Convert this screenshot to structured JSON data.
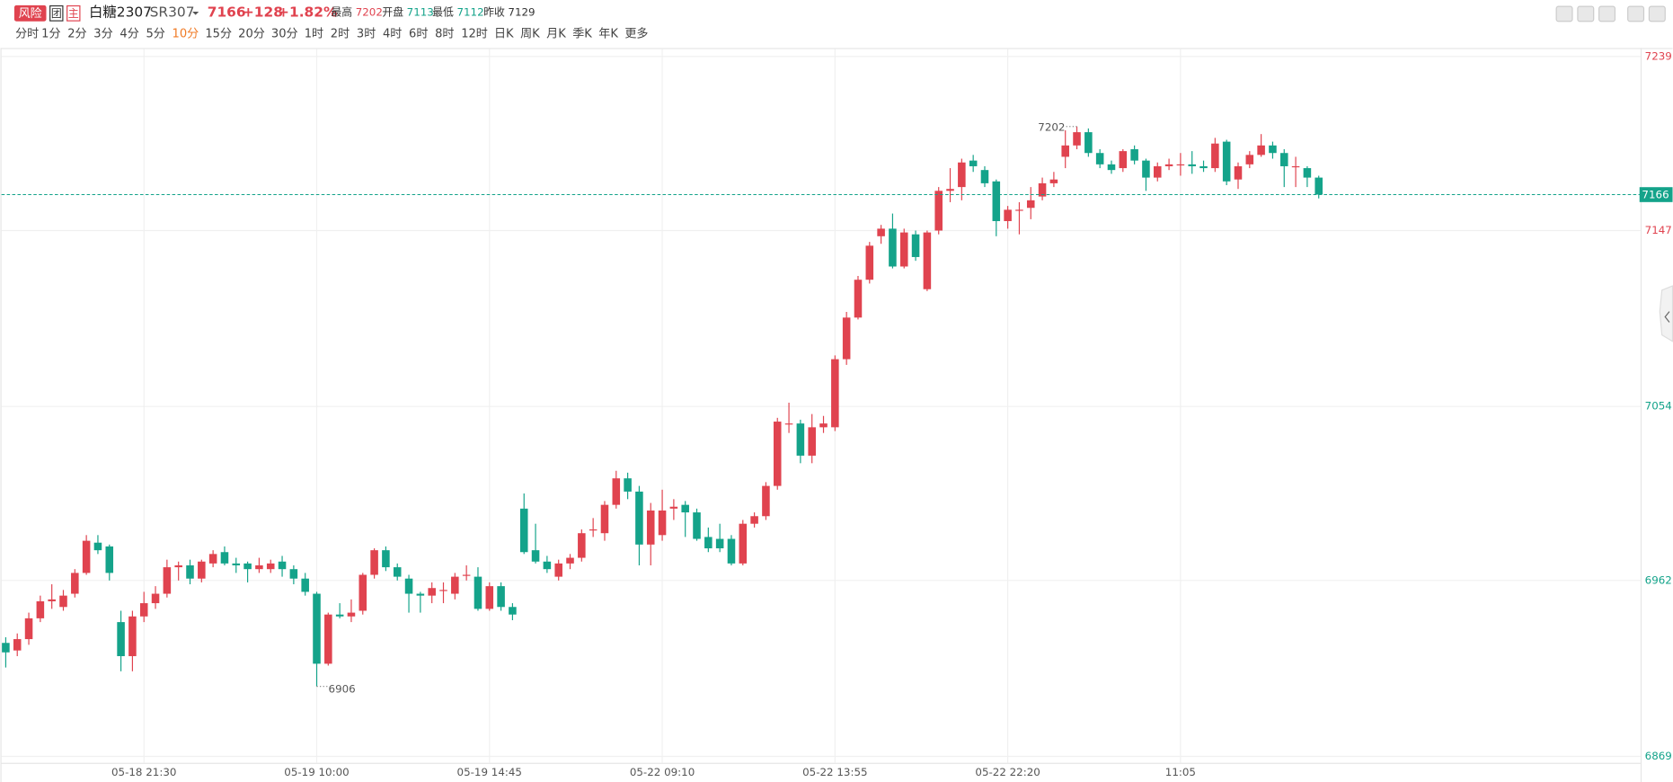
{
  "header": {
    "badges": [
      "风险",
      "团",
      "主"
    ],
    "name": "白糖2307",
    "code": "SR307",
    "change": "+128",
    "change_pct": "+1.82%",
    "stats": [
      {
        "label": "最高",
        "value": "7202"
      },
      {
        "label": "开盘",
        "value": "7113"
      },
      {
        "label": "最低",
        "value": "7112"
      },
      {
        "label": "昨收"
      }
    ]
  },
  "toolbar": {
    "periods": [
      "分时",
      "1分",
      "2分",
      "3分",
      "4分",
      "5分",
      "10分",
      "15分",
      "20分",
      "30分",
      "1时",
      "2时",
      "3时",
      "4时",
      "6时",
      "8时",
      "12时",
      "日K",
      "周K",
      "月K",
      "季K",
      "年K",
      "更多"
    ],
    "active_index": 6,
    "active_color": "#f07b26"
  },
  "chart_data": {
    "type": "candlestick",
    "up_color": "#e0434f",
    "down_color": "#14a38a",
    "grid": true,
    "last_price": 7166,
    "prev_close": 7129,
    "ylim": [
      6869,
      7239
    ],
    "yticks": [
      7239,
      7147,
      7054,
      6962,
      6869
    ],
    "categories": [
      null,
      null,
      null,
      null,
      null,
      null,
      null,
      null,
      null,
      null,
      null,
      null,
      "05-18 21:30",
      null,
      null,
      null,
      null,
      null,
      null,
      null,
      null,
      null,
      null,
      null,
      null,
      null,
      null,
      "05-19 10:00",
      null,
      null,
      null,
      null,
      null,
      null,
      null,
      null,
      null,
      null,
      null,
      null,
      null,
      null,
      "05-19 14:45",
      null,
      null,
      null,
      null,
      null,
      null,
      null,
      null,
      null,
      null,
      null,
      null,
      null,
      null,
      "05-22 09:10",
      null,
      null,
      null,
      null,
      null,
      null,
      null,
      null,
      null,
      null,
      null,
      null,
      null,
      null,
      "05-22 13:55",
      null,
      null,
      null,
      null,
      null,
      null,
      null,
      null,
      null,
      null,
      null,
      null,
      null,
      null,
      "05-22 22:20",
      null,
      null,
      null,
      null,
      null,
      null,
      null,
      null,
      null,
      null,
      null,
      null,
      null,
      null,
      "11:05",
      null,
      null,
      null,
      null,
      null,
      null,
      null,
      null,
      null,
      null,
      null,
      null
    ],
    "open": [
      6929,
      6925,
      6931,
      6942,
      6951,
      6948,
      6955,
      6966,
      6982,
      6980,
      6940,
      6922,
      6943,
      6950,
      6955,
      6969,
      6970,
      6963,
      6971,
      6977,
      6971,
      6971,
      6968,
      6968,
      6972,
      6968,
      6963,
      6955,
      6918,
      6944,
      6943,
      6946,
      6965,
      6978,
      6969,
      6963,
      6955,
      6954,
      6957,
      6955,
      6965,
      6964,
      6947,
      6959,
      6948,
      7000,
      6978,
      6972,
      6964,
      6971,
      6974,
      6989,
      6987,
      7002,
      7016,
      7009,
      6981,
      6986,
      7000,
      7002,
      6998,
      6985,
      6984,
      6984,
      6971,
      6992,
      6996,
      7012,
      7045,
      7045,
      7028,
      7043,
      7043,
      7079,
      7101,
      7121,
      7144,
      7148,
      7128,
      7145,
      7116,
      7147,
      7168,
      7170,
      7184,
      7179,
      7173,
      7152,
      7158,
      7159,
      7165,
      7172,
      7186,
      7192,
      7199,
      7188,
      7182,
      7180,
      7190,
      7184,
      7175,
      7181,
      7182,
      7182,
      7181,
      7180,
      7194,
      7174,
      7182,
      7187,
      7192,
      7188,
      7181,
      7180,
      7175
    ],
    "high": [
      6932,
      6934,
      6945,
      6954,
      6960,
      6957,
      6968,
      6986,
      6986,
      6981,
      6946,
      6946,
      6956,
      6959,
      6973,
      6972,
      6973,
      6973,
      6978,
      6980,
      6974,
      6972,
      6974,
      6973,
      6975,
      6970,
      6966,
      6956,
      6945,
      6950,
      6952,
      6966,
      6979,
      6980,
      6971,
      6965,
      6956,
      6961,
      6961,
      6966,
      6970,
      6969,
      6961,
      6961,
      6950,
      7008,
      6992,
      6975,
      6973,
      6976,
      6989,
      6995,
      7004,
      7020,
      7019,
      7012,
      7003,
      7010,
      7005,
      7004,
      7000,
      6990,
      6992,
      6986,
      6994,
      6998,
      7014,
      7048,
      7056,
      7047,
      7050,
      7049,
      7081,
      7104,
      7123,
      7141,
      7150,
      7156,
      7148,
      7147,
      7147,
      7170,
      7180,
      7185,
      7187,
      7181,
      7174,
      7160,
      7162,
      7170,
      7175,
      7178,
      7200,
      7202,
      7201,
      7190,
      7184,
      7190,
      7192,
      7185,
      7183,
      7185,
      7188,
      7189,
      7184,
      7196,
      7195,
      7183,
      7189,
      7198,
      7194,
      7190,
      7186,
      7181,
      7176
    ],
    "low": [
      6916,
      6922,
      6928,
      6940,
      6947,
      6946,
      6953,
      6965,
      6976,
      6962,
      6914,
      6914,
      6940,
      6947,
      6953,
      6962,
      6960,
      6961,
      6969,
      6970,
      6966,
      6961,
      6966,
      6966,
      6964,
      6960,
      6954,
      6906,
      6917,
      6942,
      6940,
      6944,
      6963,
      6967,
      6962,
      6945,
      6945,
      6950,
      6950,
      6952,
      6962,
      6946,
      6946,
      6946,
      6941,
      6976,
      6971,
      6966,
      6962,
      6968,
      6972,
      6985,
      6983,
      7000,
      7005,
      6970,
      6970,
      6983,
      6994,
      6985,
      6983,
      6977,
      6977,
      6970,
      6970,
      6990,
      6994,
      7010,
      7040,
      7024,
      7024,
      7040,
      7041,
      7076,
      7100,
      7119,
      7140,
      7127,
      7127,
      7131,
      7115,
      7145,
      7162,
      7163,
      7178,
      7170,
      7144,
      7148,
      7145,
      7153,
      7163,
      7170,
      7180,
      7190,
      7186,
      7180,
      7177,
      7178,
      7182,
      7168,
      7173,
      7179,
      7176,
      7177,
      7178,
      7178,
      7171,
      7169,
      7180,
      7186,
      7185,
      7170,
      7170,
      7170,
      7164
    ],
    "close": [
      6924,
      6931,
      6942,
      6951,
      6952,
      6954,
      6966,
      6983,
      6978,
      6966,
      6922,
      6943,
      6950,
      6955,
      6969,
      6970,
      6963,
      6972,
      6976,
      6971,
      6970,
      6968,
      6970,
      6971,
      6968,
      6963,
      6956,
      6918,
      6944,
      6943,
      6945,
      6965,
      6978,
      6969,
      6964,
      6955,
      6954,
      6958,
      6957,
      6964,
      6965,
      6947,
      6959,
      6948,
      6944,
      6977,
      6972,
      6968,
      6971,
      6974,
      6987,
      6989,
      7002,
      7016,
      7009,
      6981,
      6999,
      6999,
      7001,
      6998,
      6984,
      6979,
      6979,
      6971,
      6992,
      6996,
      7012,
      7046,
      7045,
      7028,
      7043,
      7045,
      7079,
      7101,
      7121,
      7139,
      7148,
      7128,
      7146,
      7133,
      7146,
      7168,
      7169,
      7183,
      7181,
      7172,
      7152,
      7158,
      7158,
      7163,
      7172,
      7174,
      7192,
      7199,
      7188,
      7182,
      7179,
      7189,
      7184,
      7175,
      7181,
      7182,
      7182,
      7181,
      7180,
      7193,
      7173,
      7181,
      7187,
      7192,
      7188,
      7181,
      7181,
      7175,
      7166
    ]
  }
}
